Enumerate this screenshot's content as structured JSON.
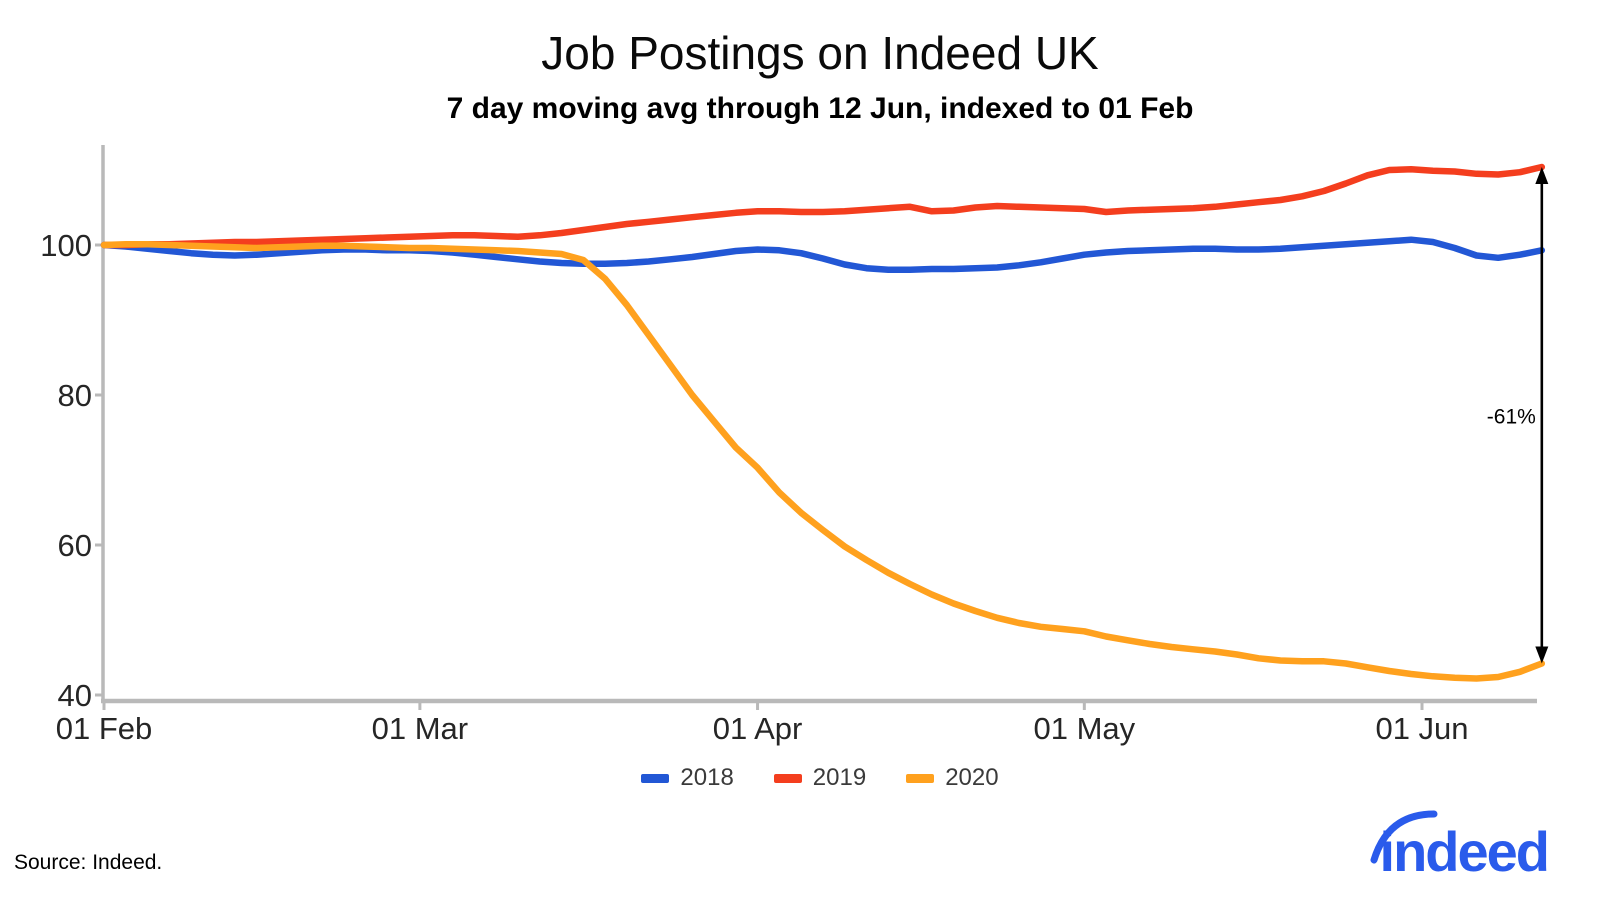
{
  "header": {
    "title": "Job Postings on Indeed UK",
    "subtitle": "7 day moving avg through 12 Jun, indexed to 01 Feb"
  },
  "chart_data": {
    "type": "line",
    "title": "Job Postings on Indeed UK",
    "subtitle": "7 day moving avg through 12 Jun, indexed to 01 Feb",
    "x_unit": "days since 01 Feb",
    "x_day_offsets": [
      0,
      2,
      4,
      6,
      8,
      10,
      12,
      14,
      16,
      18,
      20,
      22,
      24,
      26,
      28,
      30,
      32,
      34,
      36,
      38,
      40,
      42,
      44,
      46,
      48,
      50,
      52,
      54,
      56,
      58,
      60,
      62,
      64,
      66,
      68,
      70,
      72,
      74,
      76,
      78,
      80,
      82,
      84,
      86,
      88,
      90,
      92,
      94,
      96,
      98,
      100,
      102,
      104,
      106,
      108,
      110,
      112,
      114,
      116,
      118,
      120,
      122,
      124,
      126,
      128,
      130,
      132
    ],
    "series": [
      {
        "name": "2018",
        "color": "#2257d5",
        "values": [
          100,
          99.8,
          99.5,
          99.2,
          98.9,
          98.7,
          98.6,
          98.7,
          98.9,
          99.1,
          99.3,
          99.4,
          99.4,
          99.3,
          99.3,
          99.2,
          99.0,
          98.7,
          98.4,
          98.1,
          97.8,
          97.6,
          97.5,
          97.5,
          97.6,
          97.8,
          98.1,
          98.4,
          98.8,
          99.2,
          99.4,
          99.3,
          98.9,
          98.2,
          97.4,
          96.9,
          96.7,
          96.7,
          96.8,
          96.8,
          96.9,
          97.0,
          97.3,
          97.7,
          98.2,
          98.7,
          99.0,
          99.2,
          99.3,
          99.4,
          99.5,
          99.5,
          99.4,
          99.4,
          99.5,
          99.7,
          99.9,
          100.1,
          100.3,
          100.5,
          100.7,
          100.4,
          99.6,
          98.6,
          98.3,
          98.7,
          99.3
        ]
      },
      {
        "name": "2019",
        "color": "#f43e1e",
        "values": [
          100,
          100.0,
          100.1,
          100.1,
          100.2,
          100.3,
          100.4,
          100.4,
          100.5,
          100.6,
          100.7,
          100.8,
          100.9,
          101.0,
          101.1,
          101.2,
          101.3,
          101.3,
          101.2,
          101.1,
          101.3,
          101.6,
          102.0,
          102.4,
          102.8,
          103.1,
          103.4,
          103.7,
          104.0,
          104.3,
          104.5,
          104.5,
          104.4,
          104.4,
          104.5,
          104.7,
          104.9,
          105.1,
          104.5,
          104.6,
          105.0,
          105.2,
          105.1,
          105.0,
          104.9,
          104.8,
          104.4,
          104.6,
          104.7,
          104.8,
          104.9,
          105.1,
          105.4,
          105.7,
          106.0,
          106.5,
          107.2,
          108.2,
          109.3,
          110.0,
          110.1,
          109.9,
          109.8,
          109.5,
          109.4,
          109.7,
          110.4
        ]
      },
      {
        "name": "2020",
        "color": "#ffa11e",
        "values": [
          100,
          100.1,
          100.1,
          100.0,
          99.9,
          99.8,
          99.7,
          99.6,
          99.7,
          99.8,
          99.9,
          99.9,
          99.8,
          99.7,
          99.6,
          99.6,
          99.5,
          99.4,
          99.3,
          99.2,
          99.0,
          98.8,
          98.0,
          95.5,
          92.0,
          88.0,
          84.0,
          80.0,
          76.5,
          73.0,
          70.3,
          67.0,
          64.3,
          62.0,
          59.8,
          58.0,
          56.3,
          54.8,
          53.4,
          52.2,
          51.2,
          50.3,
          49.6,
          49.1,
          48.8,
          48.5,
          47.8,
          47.3,
          46.8,
          46.4,
          46.1,
          45.8,
          45.4,
          44.9,
          44.6,
          44.5,
          44.5,
          44.2,
          43.7,
          43.2,
          42.8,
          42.5,
          42.3,
          42.2,
          42.4,
          43.1,
          44.2
        ]
      }
    ],
    "x_ticks": [
      {
        "label": "01 Feb",
        "day": 0
      },
      {
        "label": "01 Mar",
        "day": 29
      },
      {
        "label": "01 Apr",
        "day": 60
      },
      {
        "label": "01 May",
        "day": 90
      },
      {
        "label": "01 Jun",
        "day": 121
      }
    ],
    "y_ticks": [
      100,
      80,
      60,
      40
    ],
    "ylim": [
      39,
      113.5
    ],
    "grid": false,
    "legend_position": "bottom-center",
    "annotation": {
      "label": "-61%",
      "day": 132,
      "from_value": 110.4,
      "to_value": 44.2
    },
    "axis_color": "#b9b9b9",
    "tick_label_color": "#262626"
  },
  "legend": {
    "items": [
      {
        "label": "2018",
        "color": "#2257d5"
      },
      {
        "label": "2019",
        "color": "#f43e1e"
      },
      {
        "label": "2020",
        "color": "#ffa11e"
      }
    ]
  },
  "footer": {
    "source": "Source: Indeed.",
    "logo_text": "indeed",
    "logo_color": "#2a5beb"
  }
}
